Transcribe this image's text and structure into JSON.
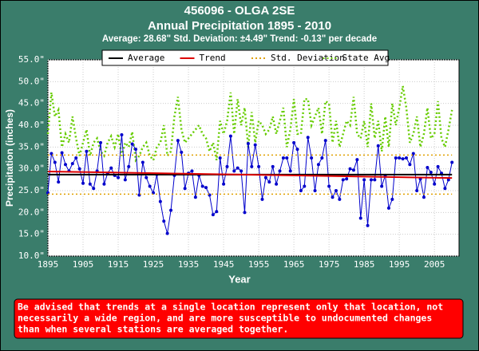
{
  "chart_data": {
    "type": "line",
    "title": "456096 - OLGA 2SE",
    "subtitle": "Annual Precipitation 1895 - 2010",
    "summary": "Average: 28.68\" Std. Deviation: ±4.49\" Trend: -0.13\" per decade",
    "x_label": "Year",
    "y_label": "Precipitation (inches)",
    "xlim": [
      1895,
      2012
    ],
    "xticks": [
      1895,
      1905,
      1915,
      1925,
      1935,
      1945,
      1955,
      1965,
      1975,
      1985,
      1995,
      2005
    ],
    "ylim": [
      10,
      55
    ],
    "yticks": [
      {
        "value": 10,
        "label": "10.0\""
      },
      {
        "value": 15,
        "label": "15.0\""
      },
      {
        "value": 20,
        "label": "20.0\""
      },
      {
        "value": 25,
        "label": "25.0\""
      },
      {
        "value": 30,
        "label": "30.0\""
      },
      {
        "value": 35,
        "label": "35.0\""
      },
      {
        "value": 40,
        "label": "40.0\""
      },
      {
        "value": 45,
        "label": "45.0\""
      },
      {
        "value": 50,
        "label": "50.0\""
      },
      {
        "value": 55,
        "label": "55.0\""
      }
    ],
    "grid": true,
    "x": [
      1895,
      1896,
      1897,
      1898,
      1899,
      1900,
      1901,
      1902,
      1903,
      1904,
      1905,
      1906,
      1907,
      1908,
      1909,
      1910,
      1911,
      1912,
      1913,
      1914,
      1915,
      1916,
      1917,
      1918,
      1919,
      1920,
      1921,
      1922,
      1923,
      1924,
      1925,
      1926,
      1927,
      1928,
      1929,
      1930,
      1931,
      1932,
      1933,
      1934,
      1935,
      1936,
      1937,
      1938,
      1939,
      1940,
      1941,
      1942,
      1943,
      1944,
      1945,
      1946,
      1947,
      1948,
      1949,
      1950,
      1951,
      1952,
      1953,
      1954,
      1955,
      1956,
      1957,
      1958,
      1959,
      1960,
      1961,
      1962,
      1963,
      1964,
      1965,
      1966,
      1967,
      1968,
      1969,
      1970,
      1971,
      1972,
      1973,
      1974,
      1975,
      1976,
      1977,
      1978,
      1979,
      1980,
      1981,
      1982,
      1983,
      1984,
      1985,
      1986,
      1987,
      1988,
      1989,
      1990,
      1991,
      1992,
      1993,
      1994,
      1995,
      1996,
      1997,
      1998,
      1999,
      2000,
      2001,
      2002,
      2003,
      2004,
      2005,
      2006,
      2007,
      2008,
      2009,
      2010
    ],
    "series": [
      {
        "color": "#0000cc",
        "style": "solid",
        "markers": true,
        "values": [
          24.5,
          33.5,
          31.5,
          27,
          33.7,
          31,
          29.5,
          31.2,
          32.5,
          30,
          26.7,
          34,
          26.5,
          25.5,
          29.5,
          36,
          26.5,
          29,
          30.2,
          28.5,
          28,
          37.8,
          27.5,
          30.5,
          35.7,
          34.5,
          24,
          31.5,
          28,
          26,
          24.5,
          28.7,
          22.5,
          18,
          15.2,
          20.5,
          28.5,
          36.5,
          33.8,
          25.5,
          29,
          29.5,
          23.5,
          28.5,
          26,
          25.7,
          24,
          19.5,
          20.2,
          32.5,
          26.5,
          30.5,
          37.5,
          29.5,
          30.2,
          29.5,
          20,
          35.8,
          30.5,
          35.5,
          30.5,
          23,
          28,
          27,
          30.5,
          26.5,
          29.5,
          32.5,
          32.5,
          29.5,
          36,
          34.5,
          25,
          26,
          37.2,
          32.5,
          25,
          31,
          32.5,
          36.5,
          26,
          23.5,
          25,
          23,
          27.5,
          27.7,
          30,
          29.7,
          32.1,
          18.7,
          27.5,
          17,
          27.5,
          27.5,
          35.3,
          26,
          28.5,
          21,
          23,
          32.5,
          32.5,
          32.3,
          32.5,
          31,
          33.5,
          25,
          27.7,
          23.5,
          30.3,
          29.2,
          26.5,
          30.5,
          29,
          25.5,
          27.5,
          31.5
        ]
      },
      {
        "name": "State Avg",
        "color": "#66cc00",
        "style": "dotted",
        "markers": false,
        "values": [
          38,
          47.5,
          42,
          43.5,
          35,
          38,
          36,
          42,
          37,
          33,
          36,
          39,
          33,
          36,
          37,
          34,
          33,
          36,
          37.5,
          35,
          38,
          33,
          36,
          35,
          38.5,
          32,
          33,
          35,
          36,
          33,
          32,
          35,
          36,
          40,
          33,
          34,
          42,
          46.5,
          39,
          36,
          37,
          38,
          39,
          40,
          38,
          37,
          34,
          36,
          32,
          41,
          38,
          41,
          47.5,
          38,
          46,
          40,
          44,
          35,
          43,
          36,
          41,
          40,
          38,
          39,
          42,
          38,
          41,
          44,
          35,
          39,
          46,
          38,
          38,
          46,
          46,
          40,
          42,
          44,
          38,
          45.5,
          45,
          36,
          41,
          35,
          38,
          41,
          40,
          46.5,
          38,
          37,
          41,
          35,
          45,
          37,
          41,
          34,
          42,
          35,
          45,
          40,
          44,
          49,
          44,
          36,
          38,
          42,
          35,
          38,
          44,
          37,
          38,
          45.5,
          37,
          35,
          39,
          43.5
        ]
      }
    ],
    "reference_lines": [
      {
        "name": "Average",
        "color": "#000000",
        "style": "solid",
        "x": [
          1895,
          2010
        ],
        "values": [
          28.68,
          28.68
        ]
      },
      {
        "name": "Trend",
        "color": "#dd0000",
        "style": "solid",
        "x": [
          1895,
          2010
        ],
        "values": [
          29.4,
          27.9
        ]
      },
      {
        "name": "Std. Deviation",
        "color": "#e0a000",
        "style": "dotted",
        "x": [
          1895,
          2010
        ],
        "values": [
          33.17,
          33.17
        ],
        "lower": [
          24.19,
          24.19
        ]
      }
    ],
    "annotation": [
      "Be advised that trends at a single location represent only that location, not",
      "necessarily a wide region, and are more susceptible to undocumented changes",
      "than when several stations are averaged together."
    ]
  }
}
